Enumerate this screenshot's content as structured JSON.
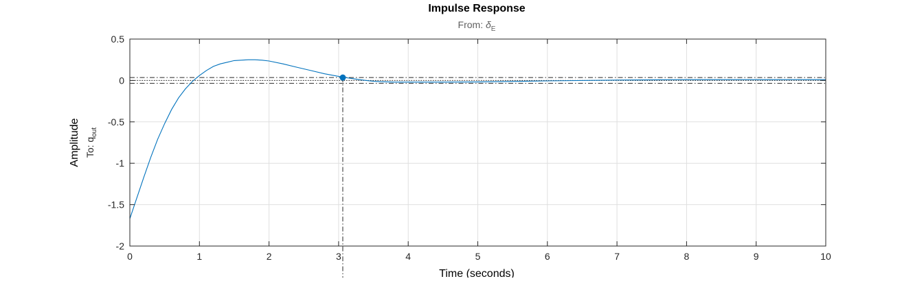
{
  "chart_data": {
    "type": "line",
    "title": "Impulse Response",
    "subtitle_prefix": "From: ",
    "subtitle_symbol": "δ",
    "subtitle_subscript": "E",
    "ylabel": "Amplitude",
    "ylabel2_prefix": "To: q",
    "ylabel2_subscript": "out",
    "xlabel": "Time (seconds)",
    "xlim": [
      0,
      10
    ],
    "ylim": [
      -2,
      0.5
    ],
    "xticks": [
      0,
      1,
      2,
      3,
      4,
      5,
      6,
      7,
      8,
      9,
      10
    ],
    "xtick_labels": [
      "0",
      "1",
      "2",
      "3",
      "4",
      "5",
      "6",
      "7",
      "8",
      "9",
      "10"
    ],
    "yticks": [
      -2,
      -1.5,
      -1,
      -0.5,
      0,
      0.5
    ],
    "ytick_labels": [
      "-2",
      "-1.5",
      "-1",
      "-0.5",
      "0",
      "0.5"
    ],
    "grid": true,
    "settling_band": [
      -0.035,
      0.035
    ],
    "final_value": 0,
    "marker": {
      "x": 3.06,
      "y": 0.035
    },
    "series": [
      {
        "color": "#0072BD",
        "x": [
          0,
          0.1,
          0.2,
          0.3,
          0.4,
          0.5,
          0.6,
          0.7,
          0.8,
          0.9,
          1.0,
          1.1,
          1.2,
          1.3,
          1.4,
          1.5,
          1.6,
          1.7,
          1.8,
          1.9,
          2.0,
          2.2,
          2.4,
          2.6,
          2.8,
          3.0,
          3.1,
          3.2,
          3.3,
          3.4,
          3.5,
          3.6,
          3.8,
          4.0,
          4.5,
          5.0,
          5.5,
          6.0,
          7.0,
          8.0,
          9.0,
          10.0
        ],
        "y": [
          -1.67,
          -1.42,
          -1.17,
          -0.93,
          -0.71,
          -0.52,
          -0.35,
          -0.21,
          -0.1,
          -0.01,
          0.06,
          0.12,
          0.17,
          0.2,
          0.22,
          0.24,
          0.245,
          0.25,
          0.25,
          0.245,
          0.235,
          0.2,
          0.16,
          0.12,
          0.08,
          0.05,
          0.035,
          0.022,
          0.01,
          0.0,
          -0.01,
          -0.015,
          -0.02,
          -0.02,
          -0.02,
          -0.018,
          -0.012,
          -0.005,
          0.005,
          0.01,
          0.01,
          0.01
        ]
      }
    ]
  }
}
